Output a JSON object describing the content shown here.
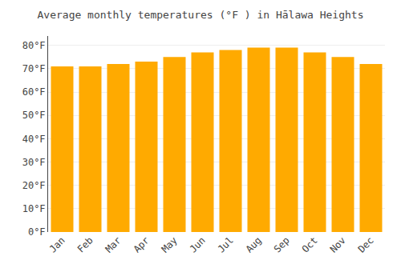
{
  "chart_data": {
    "type": "bar",
    "title": "Average monthly temperatures (°F ) in Hālawa Heights",
    "categories": [
      "Jan",
      "Feb",
      "Mar",
      "Apr",
      "May",
      "Jun",
      "Jul",
      "Aug",
      "Sep",
      "Oct",
      "Nov",
      "Dec"
    ],
    "values": [
      71,
      71,
      72,
      73,
      75,
      77,
      78,
      79,
      79,
      77,
      75,
      72
    ],
    "color": "#FFAA00",
    "ylim": [
      0,
      84
    ],
    "yticks": [
      {
        "value": 0,
        "label": "0°F"
      },
      {
        "value": 10,
        "label": "10°F"
      },
      {
        "value": 20,
        "label": "20°F"
      },
      {
        "value": 30,
        "label": "30°F"
      },
      {
        "value": 40,
        "label": "40°F"
      },
      {
        "value": 50,
        "label": "50°F"
      },
      {
        "value": 60,
        "label": "60°F"
      },
      {
        "value": 70,
        "label": "70°F"
      },
      {
        "value": 80,
        "label": "80°F"
      }
    ],
    "grid": true
  }
}
